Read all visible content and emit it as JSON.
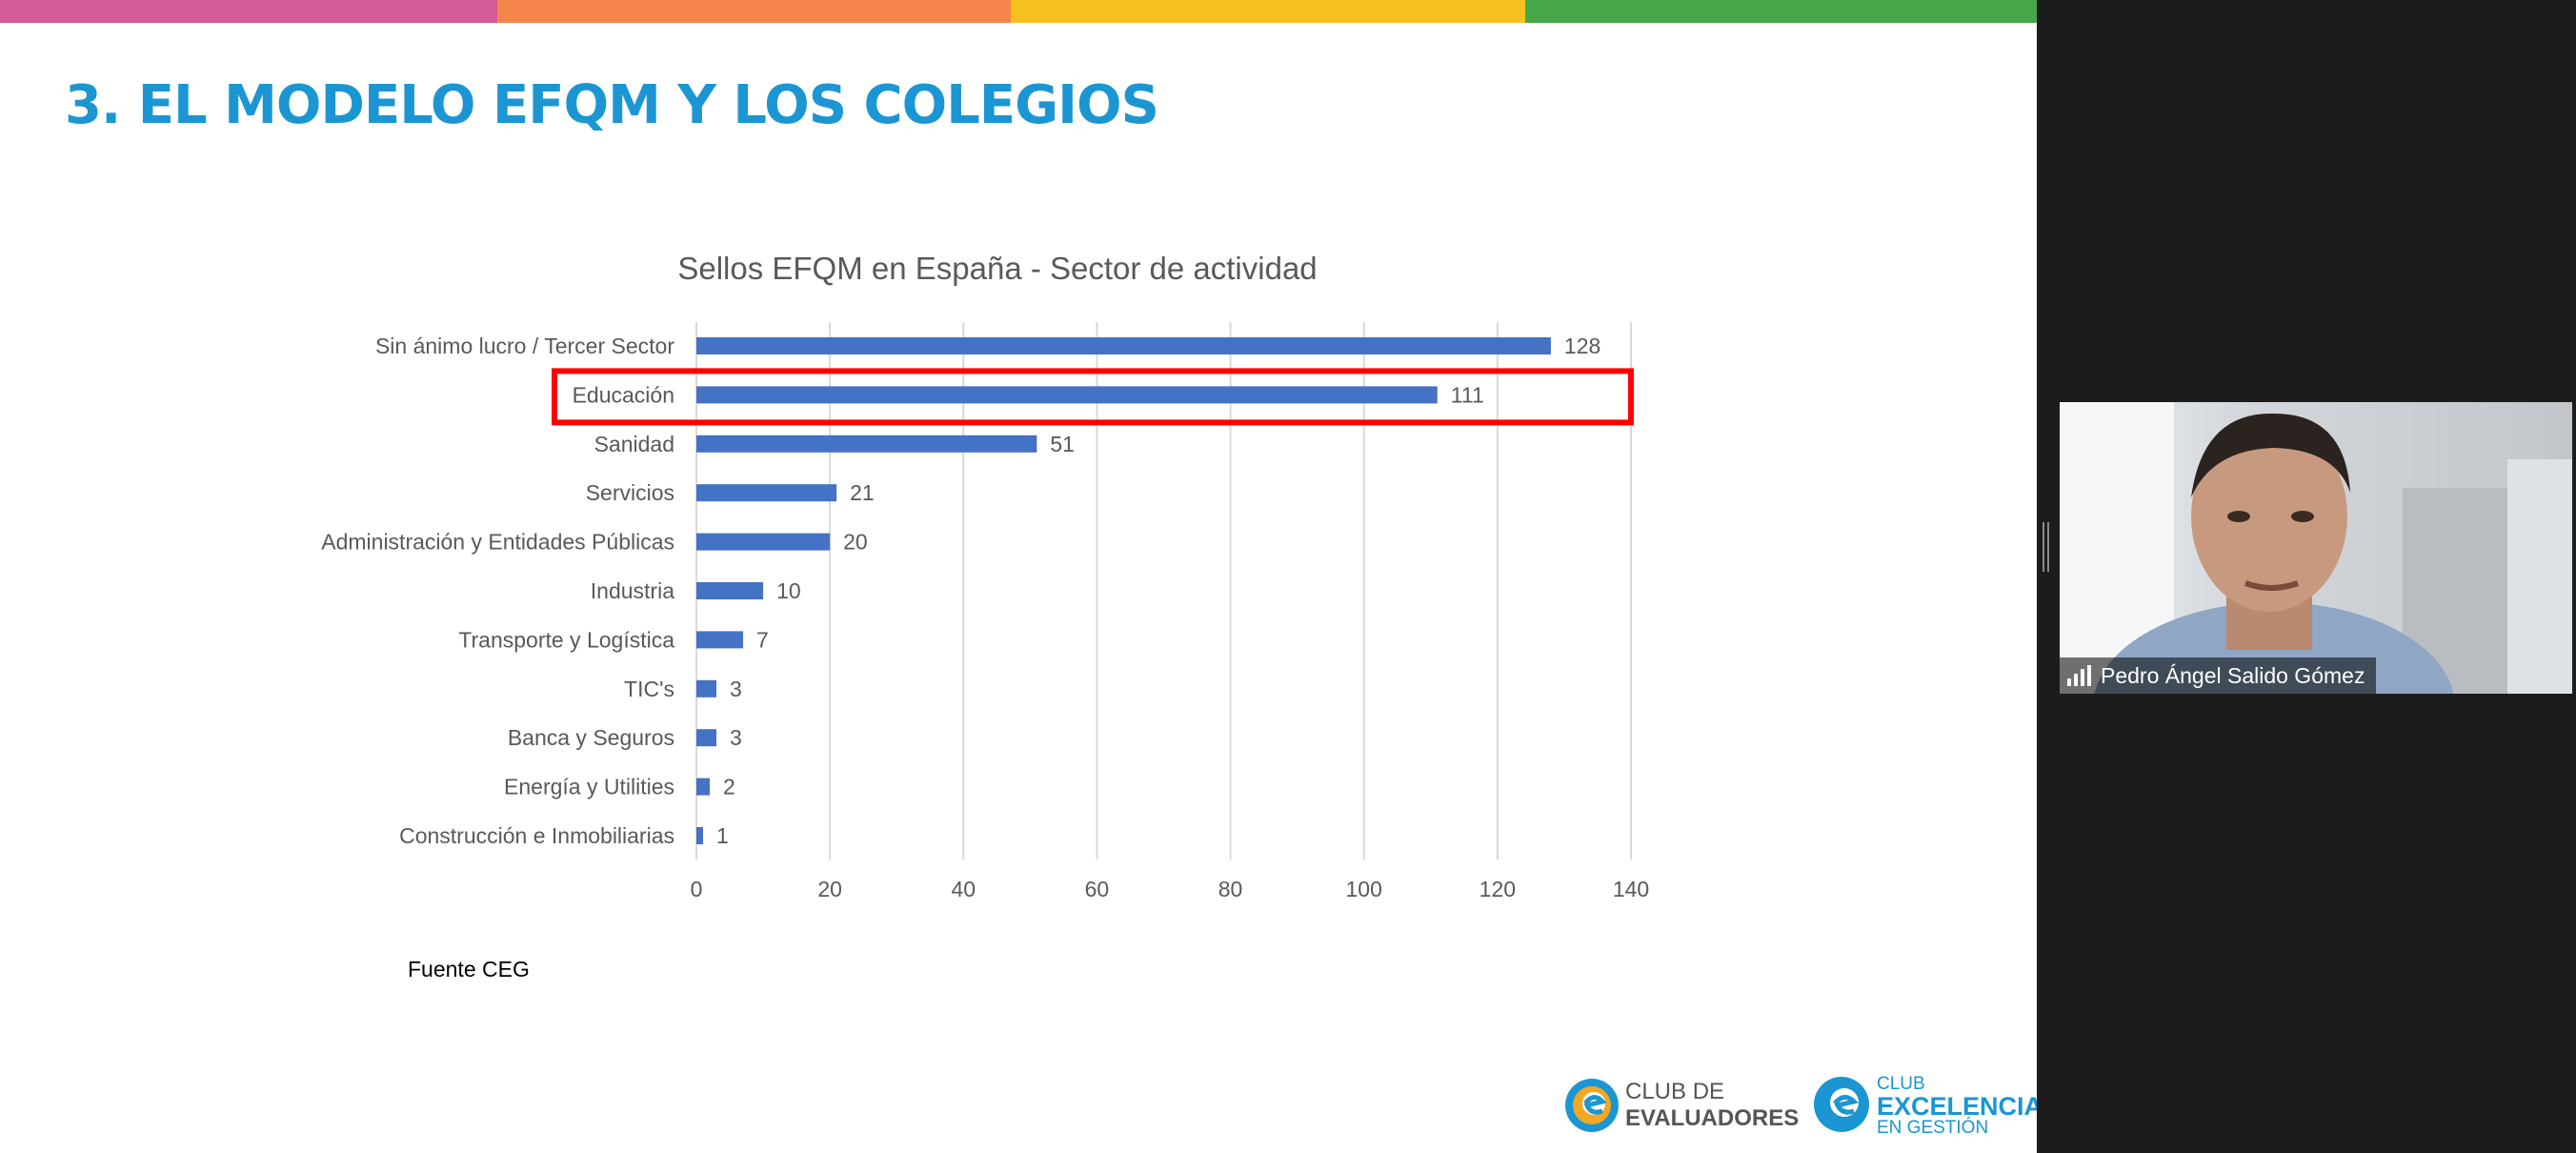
{
  "slide": {
    "title": "3. EL MODELO EFQM Y LOS COLEGIOS",
    "stripe_colors": [
      "#d35b96",
      "#f5854b",
      "#f7c21f",
      "#46a74a"
    ],
    "source_note": "Fuente CEG"
  },
  "chart_data": {
    "type": "bar",
    "orientation": "horizontal",
    "title": "Sellos EFQM en España - Sector de actividad",
    "xlabel": "",
    "ylabel": "",
    "categories": [
      "Sin ánimo lucro / Tercer Sector",
      "Educación",
      "Sanidad",
      "Servicios",
      "Administración y Entidades Públicas",
      "Industria",
      "Transporte y Logística",
      "TIC's",
      "Banca y Seguros",
      "Energía y Utilities",
      "Construcción e Inmobiliarias"
    ],
    "values": [
      128,
      111,
      51,
      21,
      20,
      10,
      7,
      3,
      3,
      2,
      1
    ],
    "xlim": [
      0,
      140
    ],
    "xticks": [
      0,
      20,
      40,
      60,
      80,
      100,
      120,
      140
    ],
    "grid": true,
    "bar_color": "#4472c4",
    "highlighted_category": "Educación",
    "highlight_color": "#ff0000"
  },
  "logos": {
    "club_evaluadores": {
      "line1": "CLUB DE",
      "line2": "EVALUADORES"
    },
    "club_excelencia": {
      "line1": "CLUB",
      "line2": "EXCELENCIA",
      "line3": "EN GESTIÓN"
    }
  },
  "participant": {
    "name": "Pedro Ángel Salido Gómez"
  }
}
